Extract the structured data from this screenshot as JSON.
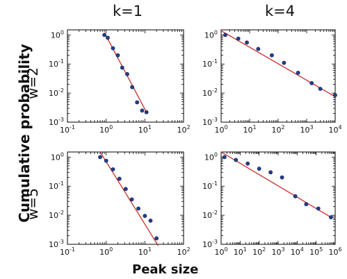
{
  "figure": {
    "column_titles": [
      "k=1",
      "k=4"
    ],
    "row_titles": [
      "w=2",
      "w=5"
    ],
    "ylabel": "Cumulative probability",
    "xlabel": "Peak size"
  },
  "chart_data": [
    {
      "type": "scatter",
      "panel": "k=1, w=2",
      "x_scale": "log",
      "y_scale": "log",
      "xlim": [
        0.1,
        100
      ],
      "ylim": [
        0.001,
        1.5
      ],
      "x_ticks": [
        {
          "base": "10",
          "exp": "-1"
        },
        {
          "base": "10",
          "exp": "0"
        },
        {
          "base": "10",
          "exp": "1"
        },
        {
          "base": "10",
          "exp": "2"
        }
      ],
      "y_ticks": [
        {
          "base": "10",
          "exp": "-3"
        },
        {
          "base": "10",
          "exp": "-2"
        },
        {
          "base": "10",
          "exp": "-1"
        },
        {
          "base": "10",
          "exp": "0"
        }
      ],
      "points": {
        "x": [
          0.9,
          1.1,
          1.5,
          2.0,
          2.6,
          3.5,
          4.7,
          6.3,
          8.5,
          11
        ],
        "y": [
          1.0,
          0.8,
          0.35,
          0.2,
          0.075,
          0.045,
          0.016,
          0.0048,
          0.0025,
          0.0022
        ]
      },
      "fit": {
        "x": [
          0.9,
          11
        ],
        "y": [
          1.2,
          0.0022
        ]
      },
      "colors": {
        "points": "#1f3f8f",
        "fit": "#cc2a2a"
      }
    },
    {
      "type": "scatter",
      "panel": "k=4, w=2",
      "x_scale": "log",
      "y_scale": "log",
      "xlim": [
        1,
        10000
      ],
      "ylim": [
        0.001,
        1.5
      ],
      "x_ticks": [
        {
          "base": "10",
          "exp": "0"
        },
        {
          "base": "10",
          "exp": "1"
        },
        {
          "base": "10",
          "exp": "2"
        },
        {
          "base": "10",
          "exp": "3"
        },
        {
          "base": "10",
          "exp": "4"
        }
      ],
      "y_ticks": [
        {
          "base": "10",
          "exp": "-3"
        },
        {
          "base": "10",
          "exp": "-2"
        },
        {
          "base": "10",
          "exp": "-1"
        },
        {
          "base": "10",
          "exp": "0"
        }
      ],
      "points": {
        "x": [
          1.4,
          4,
          8,
          20,
          60,
          160,
          500,
          1500,
          3000,
          10000
        ],
        "y": [
          1.0,
          0.75,
          0.55,
          0.33,
          0.2,
          0.11,
          0.05,
          0.022,
          0.014,
          0.0085
        ]
      },
      "fit": {
        "x": [
          1,
          10000
        ],
        "y": [
          1.4,
          0.0075
        ]
      },
      "colors": {
        "points": "#1f3f8f",
        "fit": "#cc2a2a"
      }
    },
    {
      "type": "scatter",
      "panel": "k=1, w=5",
      "x_scale": "log",
      "y_scale": "log",
      "xlim": [
        0.1,
        100
      ],
      "ylim": [
        0.001,
        1.5
      ],
      "x_ticks": [
        {
          "base": "10",
          "exp": "-1"
        },
        {
          "base": "10",
          "exp": "0"
        },
        {
          "base": "10",
          "exp": "1"
        },
        {
          "base": "10",
          "exp": "2"
        }
      ],
      "y_ticks": [
        {
          "base": "10",
          "exp": "-3"
        },
        {
          "base": "10",
          "exp": "-2"
        },
        {
          "base": "10",
          "exp": "-1"
        },
        {
          "base": "10",
          "exp": "0"
        }
      ],
      "points": {
        "x": [
          0.7,
          1.0,
          1.5,
          2.2,
          3.2,
          4.6,
          6.8,
          10,
          14,
          20
        ],
        "y": [
          1.0,
          0.75,
          0.38,
          0.18,
          0.08,
          0.035,
          0.017,
          0.0095,
          0.0065,
          0.0016
        ]
      },
      "fit": {
        "x": [
          0.7,
          22
        ],
        "y": [
          1.5,
          0.0009
        ]
      },
      "colors": {
        "points": "#1f3f8f",
        "fit": "#cc2a2a"
      }
    },
    {
      "type": "scatter",
      "panel": "k=4, w=5",
      "x_scale": "log",
      "y_scale": "log",
      "xlim": [
        1,
        1000000
      ],
      "ylim": [
        0.001,
        1.5
      ],
      "x_ticks": [
        {
          "base": "10",
          "exp": "0"
        },
        {
          "base": "10",
          "exp": "1"
        },
        {
          "base": "10",
          "exp": "2"
        },
        {
          "base": "10",
          "exp": "3"
        },
        {
          "base": "10",
          "exp": "4"
        },
        {
          "base": "10",
          "exp": "5"
        },
        {
          "base": "10",
          "exp": "6"
        }
      ],
      "y_ticks": [
        {
          "base": "10",
          "exp": "-3"
        },
        {
          "base": "10",
          "exp": "-2"
        },
        {
          "base": "10",
          "exp": "-1"
        },
        {
          "base": "10",
          "exp": "0"
        }
      ],
      "points": {
        "x": [
          1.5,
          6,
          25,
          100,
          400,
          1600,
          8000,
          30000,
          130000,
          600000
        ],
        "y": [
          1.0,
          0.8,
          0.6,
          0.4,
          0.3,
          0.2,
          0.045,
          0.024,
          0.017,
          0.0085
        ]
      },
      "fit": {
        "x": [
          1,
          700000
        ],
        "y": [
          1.5,
          0.008
        ]
      },
      "colors": {
        "points": "#1f3f8f",
        "fit": "#cc2a2a"
      }
    }
  ]
}
